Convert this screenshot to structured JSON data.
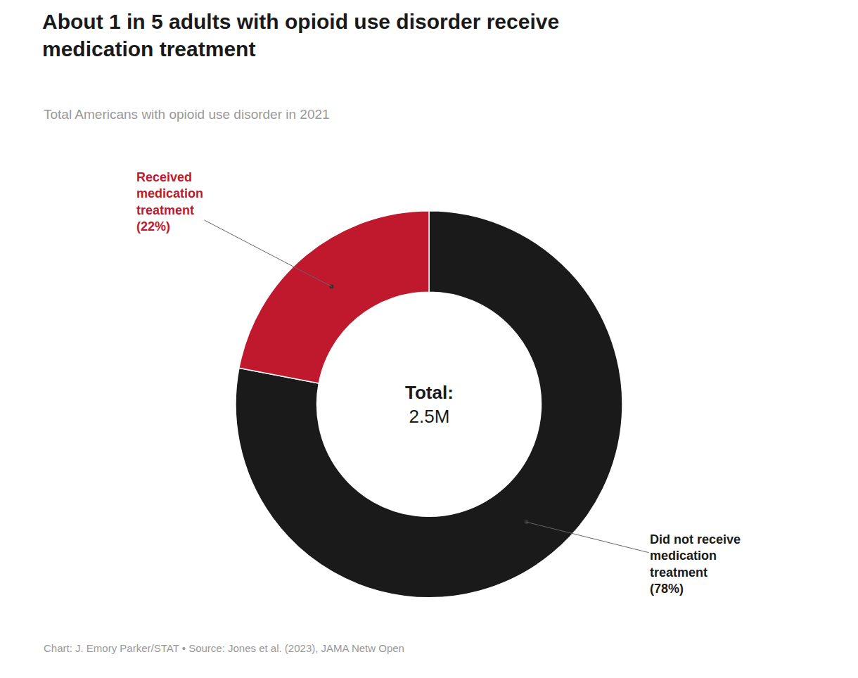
{
  "chart_data": {
    "type": "donut",
    "title": "About 1 in 5 adults with opioid use disorder receive\nmedication treatment",
    "subtitle": "Total Americans with opioid use disorder in 2021",
    "footer": "Chart: J. Emory Parker/STAT • Source: Jones et al. (2023), JAMA Netw Open",
    "categories": [
      "Did not receive\nmedication\ntreatment",
      "Received\nmedication\ntreatment"
    ],
    "values": [
      78,
      22
    ],
    "value_labels": [
      "(78%)",
      "(22%)"
    ],
    "data_labels": true,
    "colors": [
      "#1a1a1a",
      "#c0182c"
    ],
    "annotations": [
      "Total:",
      "2.5M"
    ]
  }
}
